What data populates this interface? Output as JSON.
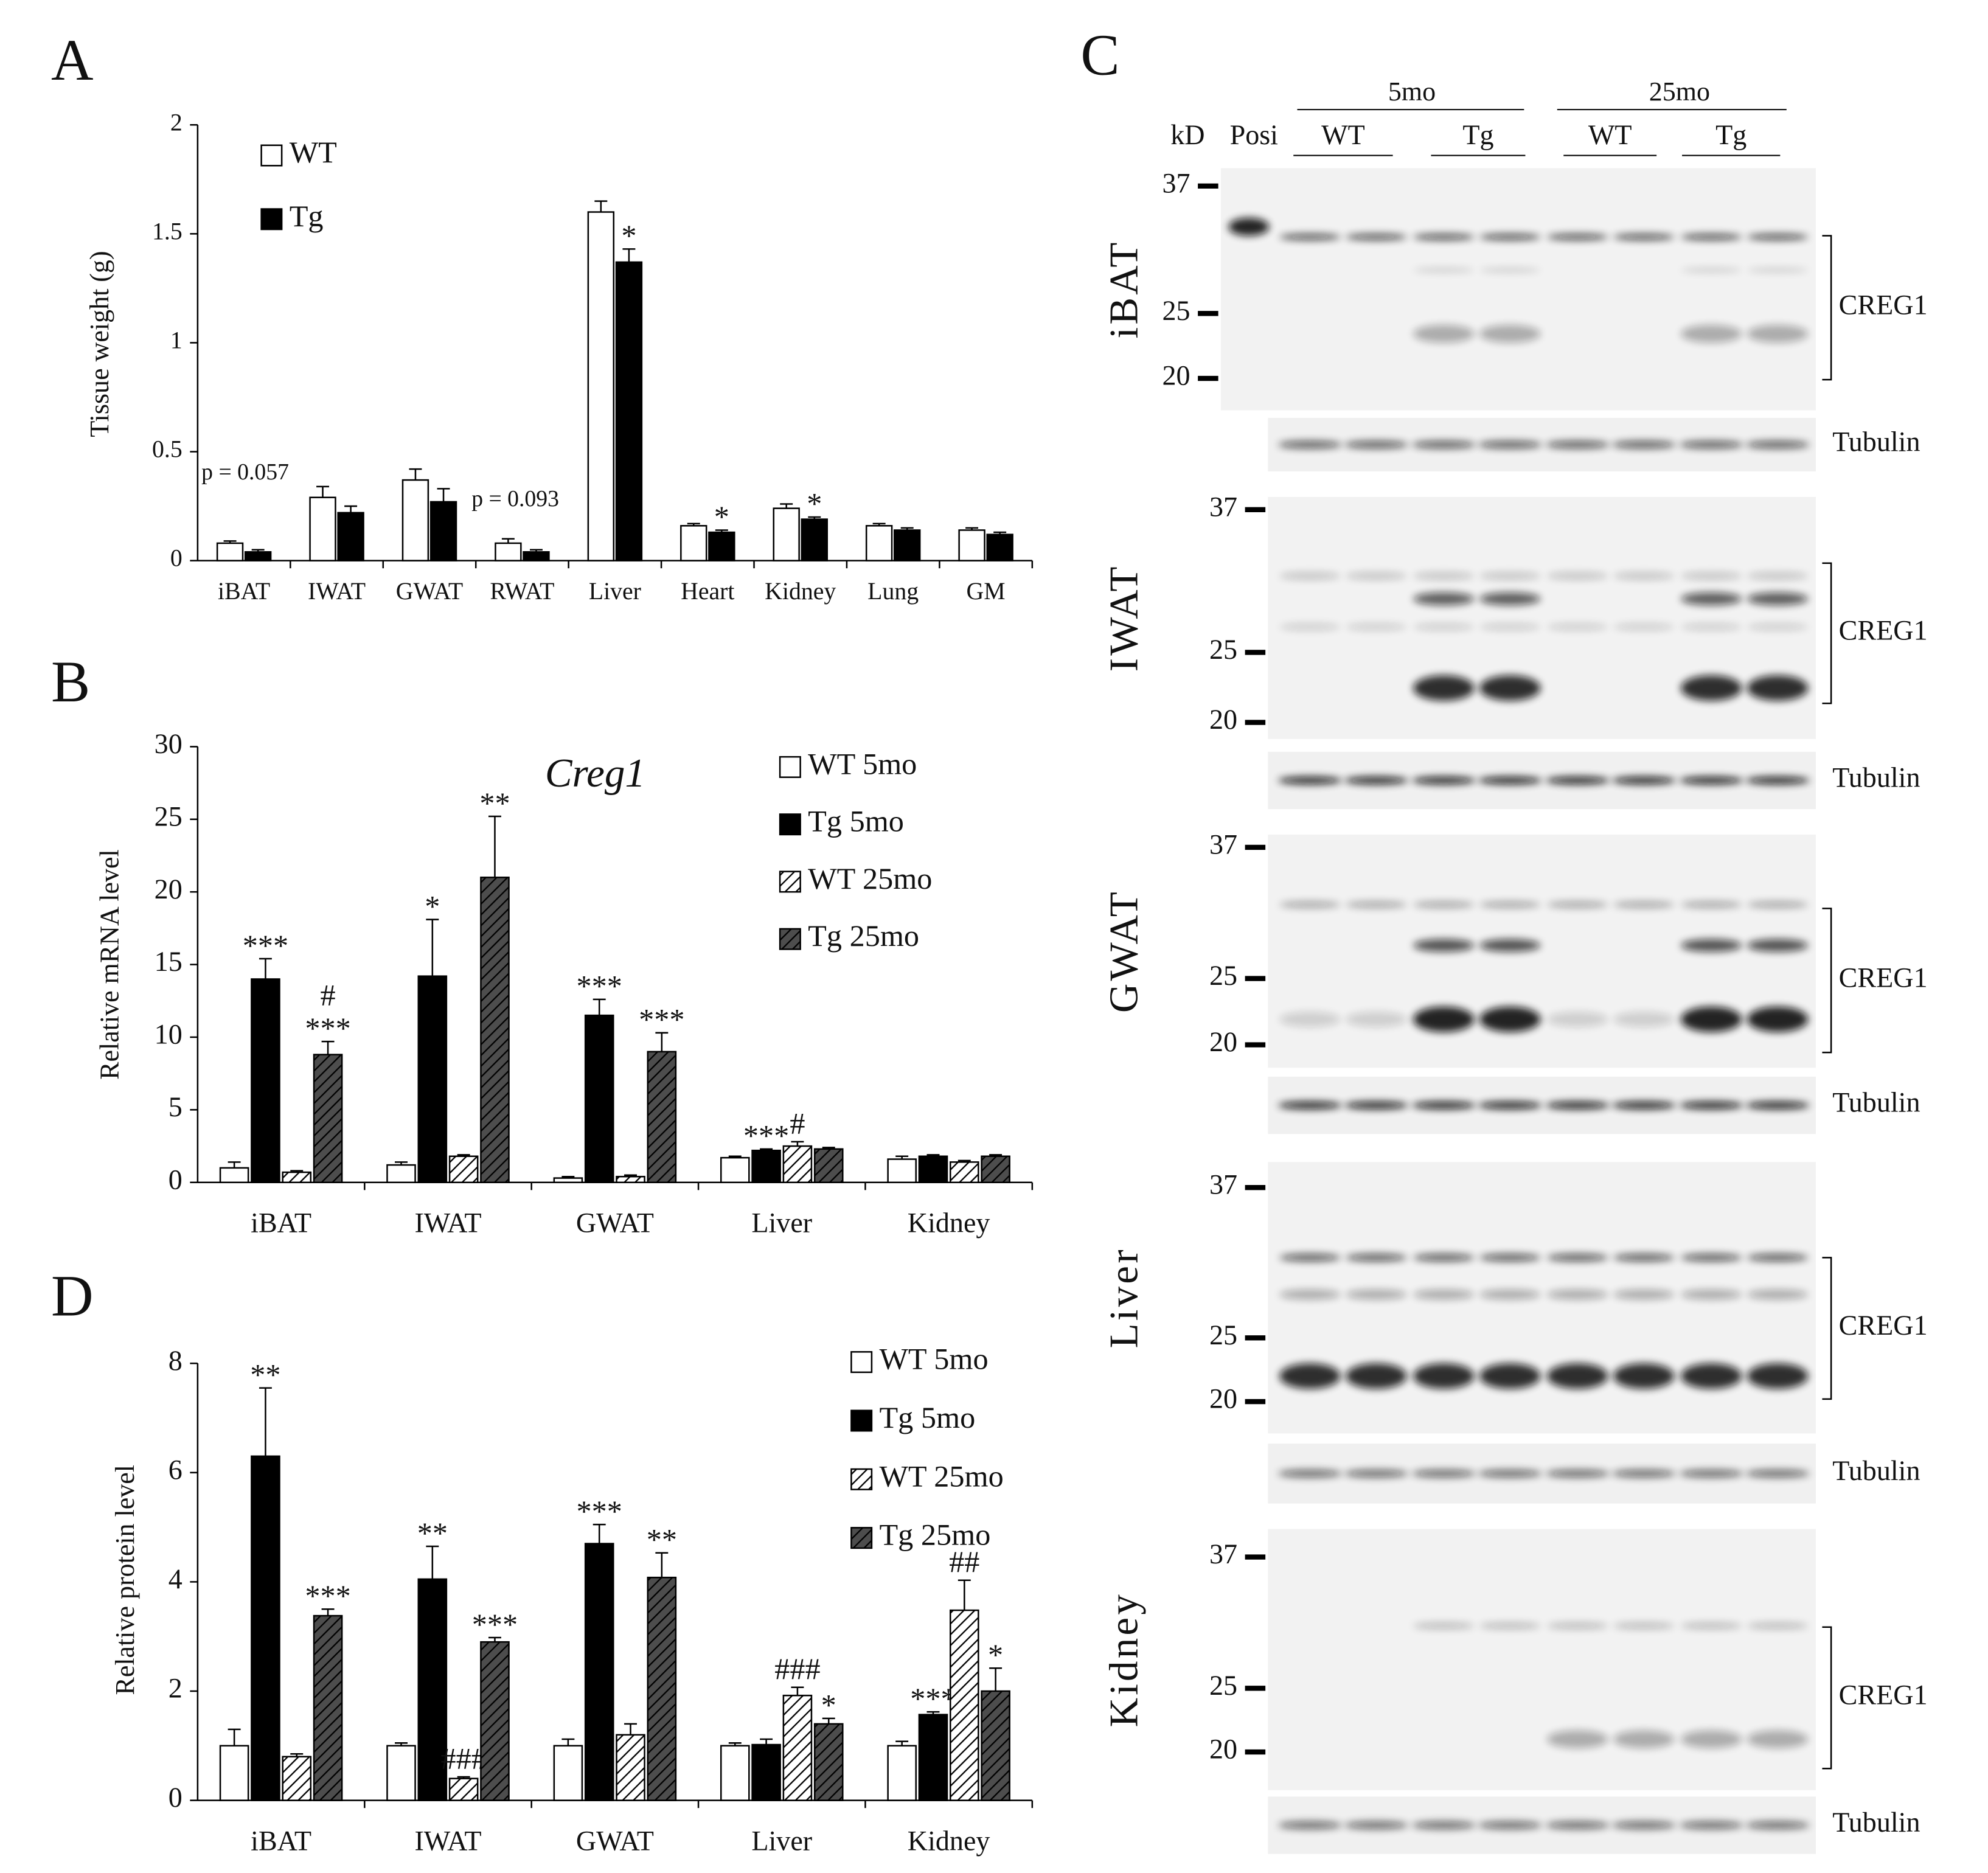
{
  "chart_data": [
    {
      "type": "bar",
      "panel": "A",
      "ylabel": "Tissue weight (g)",
      "categories": [
        "iBAT",
        "IWAT",
        "GWAT",
        "RWAT",
        "Liver",
        "Heart",
        "Kidney",
        "Lung",
        "GM"
      ],
      "series": [
        {
          "name": "WT",
          "color": "#ffffff",
          "hatched": false,
          "values": [
            0.08,
            0.29,
            0.37,
            0.08,
            1.6,
            0.16,
            0.24,
            0.16,
            0.14
          ],
          "errors": [
            0.01,
            0.05,
            0.05,
            0.02,
            0.05,
            0.01,
            0.02,
            0.01,
            0.01
          ],
          "stars": [
            null,
            null,
            null,
            null,
            null,
            null,
            null,
            null,
            null
          ]
        },
        {
          "name": "Tg",
          "color": "#000000",
          "hatched": false,
          "values": [
            0.04,
            0.22,
            0.27,
            0.04,
            1.37,
            0.13,
            0.19,
            0.14,
            0.12
          ],
          "errors": [
            0.01,
            0.03,
            0.06,
            0.01,
            0.06,
            0.01,
            0.01,
            0.01,
            0.01
          ],
          "stars": [
            null,
            null,
            null,
            null,
            "*",
            "*",
            "*",
            null,
            null
          ]
        }
      ],
      "annotations": [
        "p = 0.057",
        "p = 0.093"
      ],
      "ylim": [
        0,
        2
      ],
      "yticks": [
        0,
        0.5,
        1,
        1.5,
        2
      ]
    },
    {
      "type": "bar",
      "panel": "B",
      "title": "Creg1",
      "ylabel": "Relative mRNA level",
      "categories": [
        "iBAT",
        "IWAT",
        "GWAT",
        "Liver",
        "Kidney"
      ],
      "series": [
        {
          "name": "WT 5mo",
          "color": "#ffffff",
          "hatched": false,
          "values": [
            1.0,
            1.2,
            0.3,
            1.7,
            1.6
          ],
          "errors": [
            0.4,
            0.2,
            0.1,
            0.1,
            0.2
          ],
          "stars": [
            null,
            null,
            null,
            null,
            null
          ],
          "hashes": [
            null,
            null,
            null,
            null,
            null
          ]
        },
        {
          "name": "Tg 5mo",
          "color": "#000000",
          "hatched": false,
          "values": [
            14.0,
            14.2,
            11.5,
            2.2,
            1.8
          ],
          "errors": [
            1.4,
            3.9,
            1.1,
            0.1,
            0.1
          ],
          "stars": [
            "***",
            "*",
            "***",
            "***",
            null
          ],
          "hashes": [
            null,
            null,
            null,
            null,
            null
          ]
        },
        {
          "name": "WT 25mo",
          "color": "#ffffff",
          "hatched": true,
          "values": [
            0.7,
            1.8,
            0.4,
            2.5,
            1.4
          ],
          "errors": [
            0.1,
            0.1,
            0.1,
            0.3,
            0.1
          ],
          "stars": [
            null,
            null,
            null,
            null,
            null
          ],
          "hashes": [
            null,
            null,
            null,
            "#",
            null
          ]
        },
        {
          "name": "Tg 25mo",
          "color": "#4d4d4d",
          "hatched": true,
          "values": [
            8.8,
            21.0,
            9.0,
            2.3,
            1.8
          ],
          "errors": [
            0.9,
            4.2,
            1.3,
            0.1,
            0.1
          ],
          "stars": [
            "***",
            "**",
            "***",
            null,
            null
          ],
          "hashes": [
            "#",
            null,
            null,
            null,
            null
          ]
        }
      ],
      "ylim": [
        0,
        30
      ],
      "yticks": [
        0,
        5,
        10,
        15,
        20,
        25,
        30
      ]
    },
    {
      "type": "bar",
      "panel": "D",
      "ylabel": "Relative protein level",
      "categories": [
        "iBAT",
        "IWAT",
        "GWAT",
        "Liver",
        "Kidney"
      ],
      "series": [
        {
          "name": "WT 5mo",
          "color": "#ffffff",
          "hatched": false,
          "values": [
            1.0,
            1.0,
            1.0,
            1.0,
            1.0
          ],
          "errors": [
            0.3,
            0.05,
            0.12,
            0.05,
            0.08
          ],
          "stars": [
            null,
            null,
            null,
            null,
            null
          ],
          "hashes": [
            null,
            null,
            null,
            null,
            null
          ]
        },
        {
          "name": "Tg 5mo",
          "color": "#000000",
          "hatched": false,
          "values": [
            6.3,
            4.05,
            4.7,
            1.02,
            1.57
          ],
          "errors": [
            1.25,
            0.6,
            0.35,
            0.1,
            0.05
          ],
          "stars": [
            "**",
            "**",
            "***",
            null,
            "***"
          ],
          "hashes": [
            null,
            null,
            null,
            null,
            null
          ]
        },
        {
          "name": "WT 25mo",
          "color": "#ffffff",
          "hatched": true,
          "values": [
            0.8,
            0.4,
            1.2,
            1.92,
            3.48
          ],
          "errors": [
            0.05,
            0.03,
            0.2,
            0.15,
            0.55
          ],
          "stars": [
            null,
            null,
            null,
            null,
            null
          ],
          "hashes": [
            null,
            "###",
            null,
            "###",
            "##"
          ]
        },
        {
          "name": "Tg 25mo",
          "color": "#4d4d4d",
          "hatched": true,
          "values": [
            3.38,
            2.9,
            4.08,
            1.4,
            2.0
          ],
          "errors": [
            0.12,
            0.08,
            0.45,
            0.1,
            0.42
          ],
          "stars": [
            "***",
            "***",
            "**",
            "*",
            "*"
          ],
          "hashes": [
            null,
            null,
            null,
            null,
            null
          ]
        }
      ],
      "ylim": [
        0,
        8
      ],
      "yticks": [
        0,
        2,
        4,
        6,
        8
      ]
    }
  ],
  "blot": {
    "panel": "C",
    "unit": "kD",
    "positive_lane": "Posi",
    "ages": [
      "5mo",
      "25mo"
    ],
    "genotypes": [
      "WT",
      "Tg",
      "WT",
      "Tg"
    ],
    "tissues": [
      "iBAT",
      "IWAT",
      "GWAT",
      "Liver",
      "Kidney"
    ],
    "target": "CREG1",
    "loading": "Tubulin",
    "markers": [
      37,
      25,
      20
    ]
  }
}
